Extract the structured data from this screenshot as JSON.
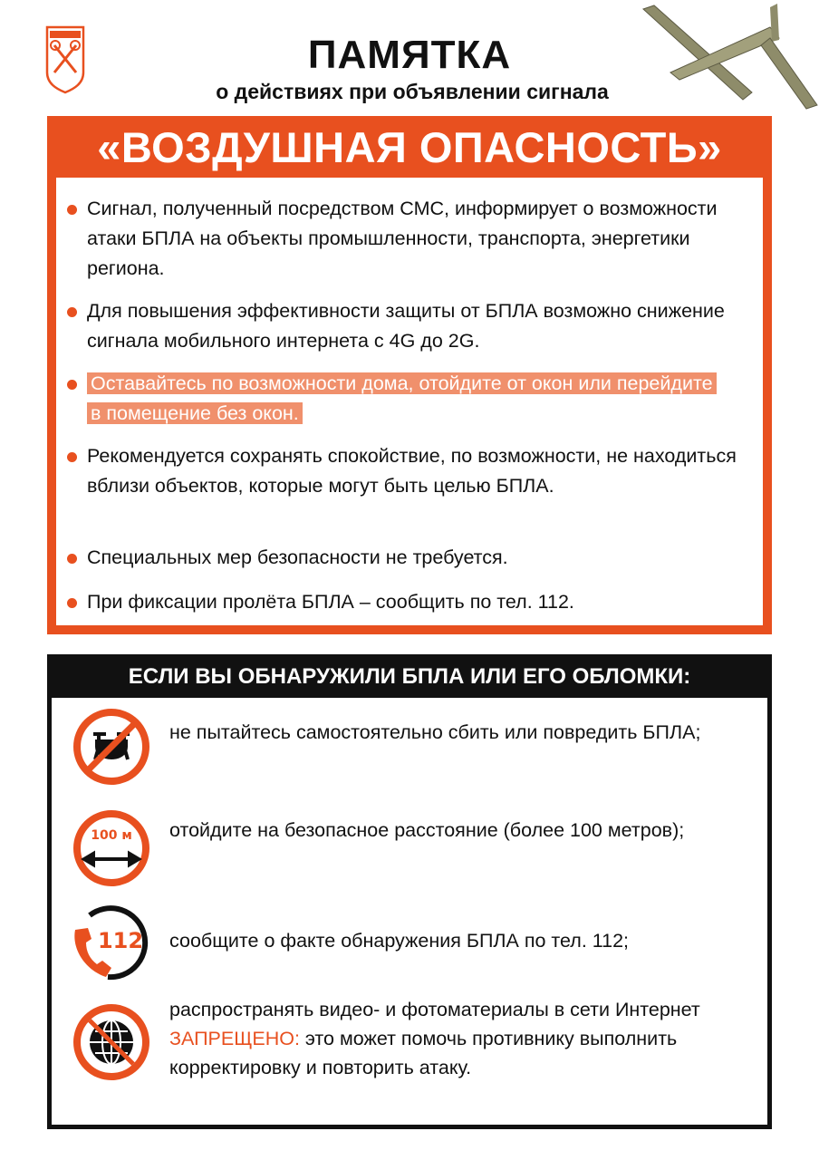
{
  "header": {
    "title": "ПАМЯТКА",
    "subtitle": "о действиях при объявлении сигнала",
    "banner": "«ВОЗДУШНАЯ ОПАСНОСТЬ»"
  },
  "colors": {
    "accent": "#e8501f",
    "highlight": "#f0906c",
    "dark": "#111111"
  },
  "bullets": [
    "Сигнал, полученный посредством СМС, информирует о возможности атаки БПЛА на объекты промышленности, транспорта, энергетики региона.",
    "Для повышения эффективности защиты от БПЛА возможно снижение сигнала мобильного интернета с 4G до 2G.",
    "Оставайтесь по возможности дома, отойдите от окон или перейдите в помещение без окон.",
    "Рекомендуется сохранять спокойствие, по возможности, не находиться вблизи объектов, которые могут быть целью БПЛА.",
    "Специальных мер безопасности не требуется.",
    "При фиксации пролёта БПЛА – сообщить по тел. 112."
  ],
  "section": {
    "title": "ЕСЛИ ВЫ ОБНАРУЖИЛИ БПЛА ИЛИ ЕГО ОБЛОМКИ:",
    "items": [
      {
        "icon": "no-drone-icon",
        "text": "не пытайтесь самостоятельно сбить или повредить БПЛА;"
      },
      {
        "icon": "distance-100m-icon",
        "icon_label": "100 м",
        "text": "отойдите на безопасное расстояние (более 100 метров);"
      },
      {
        "icon": "phone-112-icon",
        "icon_label": "112",
        "text": "сообщите о факте обнаружения БПЛА по тел. 112;"
      },
      {
        "icon": "no-internet-icon",
        "text_before": "распространять видео- и фотоматериалы в сети Интернет ",
        "text_warning": "ЗАПРЕЩЕНО:",
        "text_after": " это может помочь противнику выполнить корректировку и повторить атаку."
      }
    ]
  }
}
